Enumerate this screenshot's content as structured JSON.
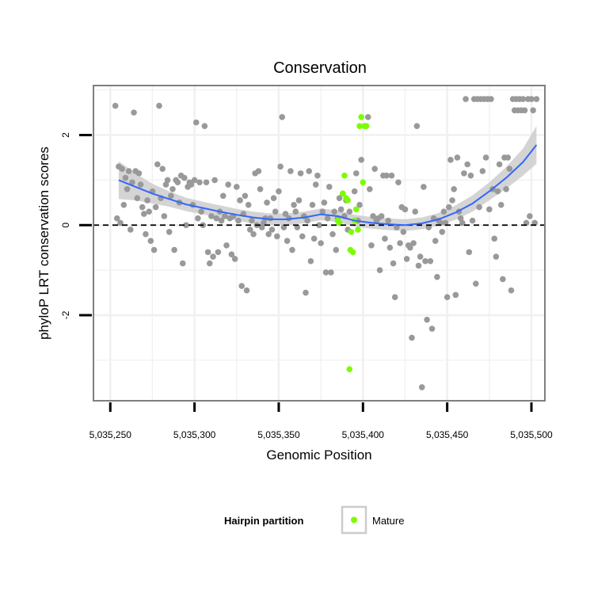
{
  "chart_data": {
    "type": "scatter",
    "title": "Conservation",
    "xlabel": "Genomic Position",
    "ylabel": "phyloP LRT conservation scores",
    "xlim": [
      5035240,
      5035508
    ],
    "ylim": [
      -3.9,
      3.1
    ],
    "xticks": [
      5035250,
      5035300,
      5035350,
      5035400,
      5035450,
      5035500
    ],
    "xtick_labels": [
      "5,035,250",
      "5,035,300",
      "5,035,350",
      "5,035,400",
      "5,035,450",
      "5,035,500"
    ],
    "yticks": [
      -2,
      0,
      2
    ],
    "ytick_labels": [
      "-2",
      "0",
      "2"
    ],
    "grid": true,
    "reference_line": {
      "y": 0,
      "style": "dashed"
    },
    "legend": {
      "title": "Hairpin partition",
      "placement": "bottom",
      "entries": [
        {
          "label": "Mature",
          "color": "#7cfc00"
        }
      ]
    },
    "colors": {
      "other": "#999999",
      "mature": "#7cfc00",
      "smooth_line": "#3366ff",
      "smooth_band": "#cccccc",
      "panel_border": "#7f7f7f",
      "gridline": "#f0f0f0"
    },
    "series": [
      {
        "name": "Other",
        "color": "#999999",
        "points": [
          [
            5035253,
            2.65
          ],
          [
            5035254,
            0.15
          ],
          [
            5035255,
            1.3
          ],
          [
            5035256,
            0.05
          ],
          [
            5035257,
            1.25
          ],
          [
            5035258,
            0.45
          ],
          [
            5035259,
            1.05
          ],
          [
            5035260,
            0.8
          ],
          [
            5035261,
            1.2
          ],
          [
            5035262,
            -0.1
          ],
          [
            5035263,
            0.95
          ],
          [
            5035264,
            2.5
          ],
          [
            5035265,
            1.2
          ],
          [
            5035266,
            0.6
          ],
          [
            5035267,
            1.15
          ],
          [
            5035268,
            0.9
          ],
          [
            5035269,
            0.4
          ],
          [
            5035270,
            0.25
          ],
          [
            5035271,
            -0.2
          ],
          [
            5035272,
            0.55
          ],
          [
            5035273,
            0.3
          ],
          [
            5035274,
            -0.35
          ],
          [
            5035275,
            0.75
          ],
          [
            5035276,
            -0.55
          ],
          [
            5035277,
            0.4
          ],
          [
            5035278,
            1.35
          ],
          [
            5035279,
            2.65
          ],
          [
            5035280,
            0.6
          ],
          [
            5035281,
            1.25
          ],
          [
            5035282,
            0.2
          ],
          [
            5035283,
            0.9
          ],
          [
            5035284,
            1.0
          ],
          [
            5035285,
            -0.15
          ],
          [
            5035286,
            0.65
          ],
          [
            5035287,
            0.8
          ],
          [
            5035288,
            -0.55
          ],
          [
            5035289,
            1.0
          ],
          [
            5035290,
            0.95
          ],
          [
            5035291,
            0.5
          ],
          [
            5035292,
            1.1
          ],
          [
            5035293,
            -0.85
          ],
          [
            5035294,
            1.05
          ],
          [
            5035295,
            0.0
          ],
          [
            5035296,
            0.85
          ],
          [
            5035297,
            0.95
          ],
          [
            5035298,
            0.9
          ],
          [
            5035299,
            0.45
          ],
          [
            5035300,
            1.0
          ],
          [
            5035301,
            2.28
          ],
          [
            5035302,
            0.15
          ],
          [
            5035303,
            0.95
          ],
          [
            5035304,
            0.3
          ],
          [
            5035305,
            0.0
          ],
          [
            5035306,
            2.2
          ],
          [
            5035307,
            0.95
          ],
          [
            5035308,
            -0.6
          ],
          [
            5035309,
            -0.85
          ],
          [
            5035310,
            0.2
          ],
          [
            5035311,
            -0.7
          ],
          [
            5035312,
            1.0
          ],
          [
            5035313,
            0.15
          ],
          [
            5035314,
            -0.6
          ],
          [
            5035315,
            0.3
          ],
          [
            5035316,
            0.1
          ],
          [
            5035317,
            0.65
          ],
          [
            5035318,
            0.2
          ],
          [
            5035319,
            -0.45
          ],
          [
            5035320,
            0.9
          ],
          [
            5035321,
            0.15
          ],
          [
            5035322,
            -0.65
          ],
          [
            5035323,
            0.2
          ],
          [
            5035324,
            -0.75
          ],
          [
            5035325,
            0.85
          ],
          [
            5035326,
            0.1
          ],
          [
            5035327,
            0.55
          ],
          [
            5035328,
            -1.35
          ],
          [
            5035329,
            0.25
          ],
          [
            5035330,
            0.65
          ],
          [
            5035331,
            -1.45
          ],
          [
            5035332,
            0.45
          ],
          [
            5035333,
            -0.1
          ],
          [
            5035334,
            0.1
          ],
          [
            5035335,
            -0.2
          ],
          [
            5035336,
            1.15
          ],
          [
            5035337,
            0.0
          ],
          [
            5035338,
            1.2
          ],
          [
            5035339,
            0.8
          ],
          [
            5035340,
            -0.05
          ],
          [
            5035341,
            0.05
          ],
          [
            5035342,
            0.15
          ],
          [
            5035343,
            0.5
          ],
          [
            5035344,
            -0.2
          ],
          [
            5035345,
            0.15
          ],
          [
            5035346,
            -0.1
          ],
          [
            5035347,
            0.6
          ],
          [
            5035348,
            0.3
          ],
          [
            5035349,
            -0.25
          ],
          [
            5035350,
            0.75
          ],
          [
            5035351,
            1.3
          ],
          [
            5035352,
            2.4
          ],
          [
            5035353,
            -0.05
          ],
          [
            5035354,
            0.25
          ],
          [
            5035355,
            -0.35
          ],
          [
            5035356,
            0.15
          ],
          [
            5035357,
            1.2
          ],
          [
            5035358,
            -0.55
          ],
          [
            5035359,
            0.45
          ],
          [
            5035360,
            0.3
          ],
          [
            5035361,
            -0.05
          ],
          [
            5035362,
            0.55
          ],
          [
            5035363,
            1.15
          ],
          [
            5035364,
            -0.25
          ],
          [
            5035365,
            0.2
          ],
          [
            5035366,
            -1.5
          ],
          [
            5035367,
            0.1
          ],
          [
            5035368,
            1.2
          ],
          [
            5035369,
            -0.8
          ],
          [
            5035370,
            0.45
          ],
          [
            5035371,
            -0.3
          ],
          [
            5035372,
            0.9
          ],
          [
            5035373,
            1.1
          ],
          [
            5035374,
            0.0
          ],
          [
            5035375,
            -0.4
          ],
          [
            5035376,
            0.3
          ],
          [
            5035377,
            0.5
          ],
          [
            5035378,
            -1.05
          ],
          [
            5035379,
            0.15
          ],
          [
            5035380,
            0.85
          ],
          [
            5035381,
            -1.05
          ],
          [
            5035382,
            -0.2
          ],
          [
            5035383,
            0.3
          ],
          [
            5035384,
            -0.55
          ],
          [
            5035385,
            0.15
          ],
          [
            5035386,
            0.6
          ],
          [
            5035387,
            0.35
          ],
          [
            5035388,
            0.7
          ],
          [
            5035389,
            0.2
          ],
          [
            5035390,
            0.55
          ],
          [
            5035391,
            -0.1
          ],
          [
            5035392,
            0.3
          ],
          [
            5035395,
            0.75
          ],
          [
            5035396,
            1.15
          ],
          [
            5035397,
            0.1
          ],
          [
            5035398,
            0.45
          ],
          [
            5035399,
            1.45
          ],
          [
            5035403,
            2.4
          ],
          [
            5035404,
            0.8
          ],
          [
            5035405,
            -0.45
          ],
          [
            5035406,
            0.2
          ],
          [
            5035407,
            1.25
          ],
          [
            5035408,
            0.1
          ],
          [
            5035409,
            0.15
          ],
          [
            5035410,
            -1.0
          ],
          [
            5035411,
            0.2
          ],
          [
            5035412,
            1.1
          ],
          [
            5035413,
            -0.3
          ],
          [
            5035414,
            1.1
          ],
          [
            5035415,
            0.1
          ],
          [
            5035416,
            -0.5
          ],
          [
            5035417,
            1.1
          ],
          [
            5035418,
            -0.85
          ],
          [
            5035419,
            -1.6
          ],
          [
            5035420,
            -0.05
          ],
          [
            5035421,
            0.95
          ],
          [
            5035422,
            -0.4
          ],
          [
            5035423,
            0.4
          ],
          [
            5035424,
            -0.15
          ],
          [
            5035425,
            0.35
          ],
          [
            5035426,
            -0.75
          ],
          [
            5035427,
            -0.45
          ],
          [
            5035428,
            -0.5
          ],
          [
            5035429,
            -2.5
          ],
          [
            5035430,
            -0.4
          ],
          [
            5035431,
            0.3
          ],
          [
            5035432,
            2.2
          ],
          [
            5035433,
            -0.9
          ],
          [
            5035434,
            -0.7
          ],
          [
            5035435,
            -3.6
          ],
          [
            5035436,
            0.85
          ],
          [
            5035437,
            -0.8
          ],
          [
            5035438,
            -2.1
          ],
          [
            5035439,
            -0.05
          ],
          [
            5035440,
            -0.8
          ],
          [
            5035441,
            -2.3
          ],
          [
            5035442,
            0.15
          ],
          [
            5035443,
            -0.35
          ],
          [
            5035444,
            -1.15
          ],
          [
            5035445,
            0.1
          ],
          [
            5035446,
            0.05
          ],
          [
            5035447,
            -0.15
          ],
          [
            5035448,
            0.3
          ],
          [
            5035449,
            0.05
          ],
          [
            5035450,
            -1.6
          ],
          [
            5035451,
            0.4
          ],
          [
            5035452,
            1.45
          ],
          [
            5035453,
            0.55
          ],
          [
            5035454,
            0.8
          ],
          [
            5035455,
            -1.55
          ],
          [
            5035456,
            1.5
          ],
          [
            5035457,
            0.3
          ],
          [
            5035458,
            0.15
          ],
          [
            5035459,
            0.05
          ],
          [
            5035460,
            1.15
          ],
          [
            5035461,
            2.8
          ],
          [
            5035462,
            1.35
          ],
          [
            5035463,
            -0.6
          ],
          [
            5035464,
            1.1
          ],
          [
            5035465,
            0.1
          ],
          [
            5035466,
            2.8
          ],
          [
            5035467,
            -1.3
          ],
          [
            5035468,
            2.8
          ],
          [
            5035469,
            0.4
          ],
          [
            5035470,
            2.8
          ],
          [
            5035471,
            1.2
          ],
          [
            5035472,
            2.8
          ],
          [
            5035473,
            1.5
          ],
          [
            5035474,
            2.8
          ],
          [
            5035475,
            0.35
          ],
          [
            5035476,
            2.8
          ],
          [
            5035477,
            0.8
          ],
          [
            5035478,
            -0.3
          ],
          [
            5035479,
            -0.7
          ],
          [
            5035480,
            0.75
          ],
          [
            5035481,
            1.35
          ],
          [
            5035482,
            0.45
          ],
          [
            5035483,
            -1.2
          ],
          [
            5035484,
            1.5
          ],
          [
            5035485,
            0.8
          ],
          [
            5035486,
            1.5
          ],
          [
            5035487,
            1.25
          ],
          [
            5035488,
            -1.45
          ],
          [
            5035489,
            2.8
          ],
          [
            5035490,
            2.55
          ],
          [
            5035491,
            2.8
          ],
          [
            5035492,
            2.55
          ],
          [
            5035493,
            2.8
          ],
          [
            5035494,
            2.55
          ],
          [
            5035495,
            2.8
          ],
          [
            5035496,
            2.55
          ],
          [
            5035497,
            0.05
          ],
          [
            5035498,
            2.8
          ],
          [
            5035499,
            0.2
          ],
          [
            5035500,
            2.8
          ],
          [
            5035501,
            2.55
          ],
          [
            5035502,
            0.05
          ],
          [
            5035503,
            2.8
          ]
        ]
      },
      {
        "name": "Mature",
        "color": "#7cfc00",
        "points": [
          [
            5035385,
            0.1
          ],
          [
            5035386,
            0.05
          ],
          [
            5035388,
            0.7
          ],
          [
            5035389,
            1.1
          ],
          [
            5035390,
            0.6
          ],
          [
            5035391,
            0.55
          ],
          [
            5035392,
            -3.2
          ],
          [
            5035392.5,
            -0.55
          ],
          [
            5035393,
            -0.15
          ],
          [
            5035394,
            -0.6
          ],
          [
            5035395,
            0.1
          ],
          [
            5035396,
            0.35
          ],
          [
            5035397,
            -0.1
          ],
          [
            5035398,
            2.2
          ],
          [
            5035399,
            2.4
          ],
          [
            5035400,
            0.95
          ],
          [
            5035401,
            2.2
          ],
          [
            5035402,
            2.2
          ]
        ]
      }
    ],
    "smooth": {
      "x": [
        5035255,
        5035265,
        5035275,
        5035285,
        5035295,
        5035305,
        5035315,
        5035325,
        5035335,
        5035345,
        5035355,
        5035365,
        5035375,
        5035385,
        5035395,
        5035405,
        5035415,
        5035425,
        5035435,
        5035445,
        5035455,
        5035465,
        5035475,
        5035485,
        5035495,
        5035503
      ],
      "y": [
        1.0,
        0.85,
        0.7,
        0.58,
        0.46,
        0.38,
        0.3,
        0.23,
        0.17,
        0.13,
        0.13,
        0.17,
        0.24,
        0.2,
        0.1,
        0.05,
        0.02,
        0.0,
        0.04,
        0.13,
        0.28,
        0.48,
        0.75,
        1.05,
        1.4,
        1.78
      ],
      "se": [
        0.42,
        0.3,
        0.22,
        0.17,
        0.15,
        0.14,
        0.14,
        0.13,
        0.13,
        0.13,
        0.13,
        0.13,
        0.13,
        0.13,
        0.13,
        0.13,
        0.13,
        0.13,
        0.13,
        0.14,
        0.16,
        0.18,
        0.2,
        0.24,
        0.3,
        0.42
      ]
    }
  }
}
